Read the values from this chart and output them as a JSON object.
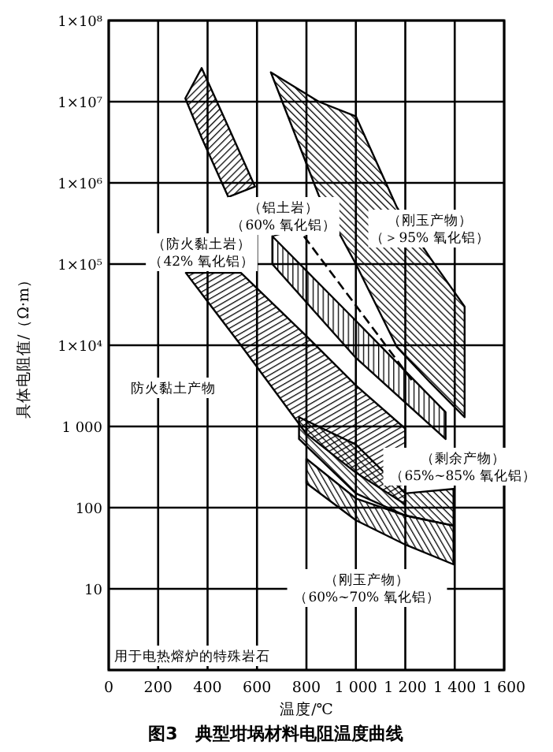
{
  "chart_data": {
    "type": "line",
    "title": "图3　典型坩埚材料电阻温度曲线",
    "xlabel": "温度/℃",
    "ylabel": "具体电阻值/（Ω·m）",
    "xlim": [
      0,
      1600
    ],
    "xticks": [
      0,
      200,
      400,
      600,
      800,
      {
        "value": 1000,
        "label": "1 000"
      },
      {
        "value": 1200,
        "label": "1 200"
      },
      {
        "value": 1400,
        "label": "1 400"
      },
      {
        "value": 1600,
        "label": "1 600"
      }
    ],
    "ylim": [
      1,
      100000000
    ],
    "yticks": [
      {
        "value": 1,
        "label": null
      },
      10,
      100,
      {
        "value": 1000,
        "label": "1 000"
      },
      {
        "value": 10000,
        "label": "1×10⁴"
      },
      {
        "value": 100000,
        "label": "1×10⁵"
      },
      {
        "value": 1000000,
        "label": "1×10⁶"
      },
      {
        "value": 10000000,
        "label": "1×10⁷"
      },
      {
        "value": 100000000,
        "label": "1×10⁸"
      }
    ],
    "log": "y",
    "grid": true,
    "series": [
      {
        "color": "#000000",
        "x": [
          310,
          376,
          484,
          592
        ],
        "values": [
          null,
          null,
          null,
          null
        ],
        "upper": [
          11000000,
          26000000,
          4900000,
          900000
        ],
        "lower": [
          11000000,
          3600000,
          670000,
          900000
        ]
      },
      {
        "color": "#000000",
        "x": [
          656,
          850,
          1000,
          1166,
          1300,
          1440
        ],
        "values": [
          null,
          null,
          null,
          null,
          null,
          null
        ],
        "upper": [
          23000000,
          10000000,
          6600000,
          500000,
          120000,
          30000
        ],
        "lower": [
          23000000,
          700000,
          100000,
          9500,
          3500,
          1300
        ]
      },
      {
        "color": "#000000",
        "x": [
          312,
          535,
          800,
          1000,
          1200
        ],
        "values": [
          null,
          null,
          null,
          null,
          null
        ],
        "upper": [
          78000,
          78000,
          13000,
          3200,
          940
        ],
        "lower": [
          78000,
          10000,
          810,
          270,
          110
        ]
      },
      {
        "color": "#000000",
        "x": [
          662,
          1000,
          1363
        ],
        "values": [
          null,
          null,
          null
        ],
        "upper": [
          220000,
          20000,
          1500
        ],
        "lower": [
          100000,
          7000,
          700
        ]
      },
      {
        "color": "#000000",
        "line_style": "dashed",
        "marker": "none",
        "x": [
          790,
          1236
        ],
        "values": [
          220000,
          3400
        ]
      },
      {
        "color": "#000000",
        "x": [
          770,
          1000,
          1200,
          1395
        ],
        "values": [
          null,
          null,
          null,
          null
        ],
        "upper": [
          1300,
          600,
          150,
          170
        ],
        "lower": [
          700,
          150,
          80,
          60
        ]
      },
      {
        "color": "#000000",
        "x": [
          800,
          1000,
          1200,
          1395
        ],
        "values": [
          null,
          null,
          null,
          null
        ],
        "upper": [
          400,
          130,
          80,
          60
        ],
        "lower": [
          200,
          70,
          35,
          20
        ]
      }
    ],
    "annotations": [
      {
        "text": "（铝土岩）（60% 氧化铝）",
        "x": 662,
        "y": 220000
      },
      "（防火黏土岩）（42% 氧化铝）",
      "（刚玉产物）（＞95% 氧化铝）",
      "防火黏土产物",
      "（剩余产物）（65%~85% 氧化铝）",
      "（刚玉产物）（60%~70% 氧化铝）",
      "用于电热熔炉的特殊岩石"
    ]
  }
}
